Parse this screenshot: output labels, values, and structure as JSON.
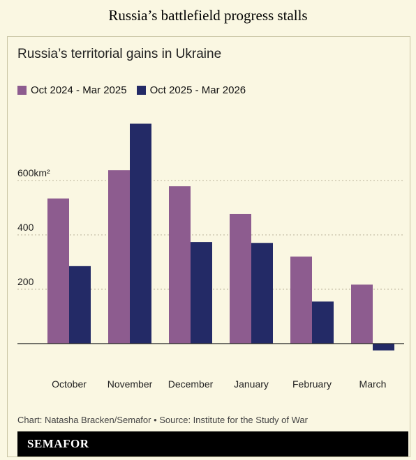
{
  "headline": "Russia’s battlefield progress stalls",
  "footer": {
    "source": "Chart: Natasha Bracken/Semafor • Source: Institute for the Study of War",
    "brand": "SEMAFOR"
  },
  "chart_data": {
    "type": "bar",
    "title": "Russia’s territorial gains in Ukraine",
    "categories": [
      "October",
      "November",
      "December",
      "January",
      "February",
      "March"
    ],
    "series": [
      {
        "name": "Oct 2024 - Mar 2025",
        "color": "#8d5c8f",
        "values": [
          534,
          638,
          579,
          477,
          320,
          217
        ]
      },
      {
        "name": "Oct 2025 - Mar 2026",
        "color": "#232a66",
        "values": [
          285,
          809,
          374,
          370,
          155,
          -25
        ]
      }
    ],
    "y_ticks": [
      200,
      400,
      600
    ],
    "y_tick_labels": [
      "200",
      "400",
      "600km²"
    ],
    "ylim": [
      -60,
      860
    ],
    "grid": true,
    "legend_position": "top-left"
  }
}
